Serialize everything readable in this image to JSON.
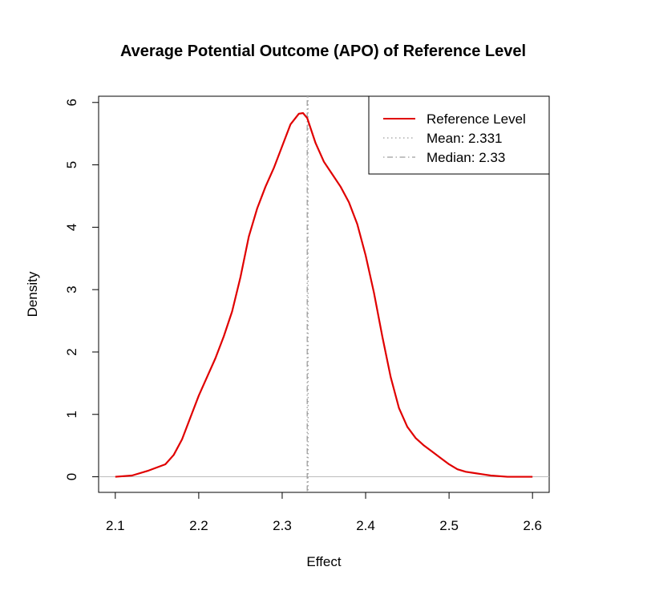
{
  "chart_data": {
    "type": "line",
    "title": "Average Potential Outcome (APO) of Reference Level",
    "xlabel": "Effect",
    "ylabel": "Density",
    "xlim": [
      2.08,
      2.62
    ],
    "ylim": [
      -0.25,
      6.1
    ],
    "x_ticks": [
      "2.1",
      "2.2",
      "2.3",
      "2.4",
      "2.5",
      "2.6"
    ],
    "y_ticks": [
      "0",
      "1",
      "2",
      "3",
      "4",
      "5",
      "6"
    ],
    "grid": false,
    "legend_position": "top-right",
    "series": [
      {
        "name": "Reference Level",
        "color": "#e00000",
        "x": [
          2.1,
          2.12,
          2.14,
          2.16,
          2.17,
          2.18,
          2.19,
          2.2,
          2.21,
          2.22,
          2.23,
          2.24,
          2.25,
          2.26,
          2.27,
          2.28,
          2.29,
          2.3,
          2.31,
          2.32,
          2.325,
          2.33,
          2.34,
          2.35,
          2.36,
          2.37,
          2.38,
          2.39,
          2.4,
          2.41,
          2.42,
          2.43,
          2.44,
          2.45,
          2.46,
          2.47,
          2.48,
          2.49,
          2.5,
          2.51,
          2.52,
          2.53,
          2.54,
          2.55,
          2.57,
          2.6
        ],
        "y": [
          0.0,
          0.02,
          0.1,
          0.2,
          0.35,
          0.6,
          0.95,
          1.3,
          1.6,
          1.9,
          2.25,
          2.65,
          3.2,
          3.85,
          4.3,
          4.65,
          4.95,
          5.3,
          5.65,
          5.82,
          5.83,
          5.75,
          5.35,
          5.05,
          4.85,
          4.65,
          4.4,
          4.05,
          3.55,
          2.95,
          2.25,
          1.6,
          1.1,
          0.8,
          0.62,
          0.5,
          0.4,
          0.3,
          0.2,
          0.12,
          0.08,
          0.06,
          0.04,
          0.02,
          0.0,
          0.0
        ]
      },
      {
        "name": "Mean: 2.331",
        "color": "#9e9e9e",
        "style": "dotted",
        "x": [
          2.331
        ]
      },
      {
        "name": "Median: 2.33",
        "color": "#9e9e9e",
        "style": "dotdash",
        "x": [
          2.33
        ]
      }
    ],
    "baseline": {
      "y": 0,
      "color": "#bdbdbd"
    }
  }
}
